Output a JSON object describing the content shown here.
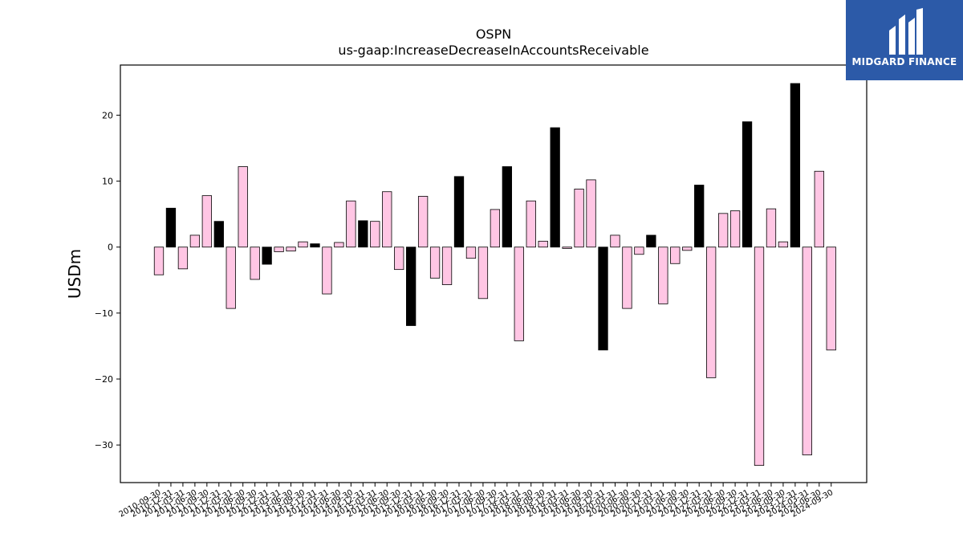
{
  "logo": {
    "text": "MIDGARD FINANCE",
    "bg": "#2c5aa8"
  },
  "chart_data": {
    "type": "bar",
    "title": "OSPN",
    "subtitle": "us-gaap:IncreaseDecreaseInAccountsReceivable",
    "ylabel": "USDm",
    "xlabel": "",
    "ylim": [
      -35.7,
      27.6
    ],
    "yticks": [
      -30,
      -20,
      -10,
      0,
      10,
      20
    ],
    "grid": false,
    "colors": {
      "pink": "#ffc6e4",
      "black": "#000000"
    },
    "categories": [
      "2010-09-30",
      "2010-12-31",
      "2011-03-31",
      "2011-06-30",
      "2011-09-30",
      "2011-12-31",
      "2012-03-31",
      "2012-06-30",
      "2012-09-30",
      "2012-12-31",
      "2013-03-31",
      "2013-06-30",
      "2013-09-30",
      "2013-12-31",
      "2014-03-31",
      "2014-06-30",
      "2014-09-30",
      "2014-12-31",
      "2015-03-31",
      "2015-06-30",
      "2015-09-30",
      "2015-12-31",
      "2016-03-31",
      "2016-06-30",
      "2016-09-30",
      "2016-12-31",
      "2017-03-31",
      "2017-06-30",
      "2017-09-30",
      "2017-12-31",
      "2018-03-31",
      "2018-06-30",
      "2018-09-30",
      "2018-12-31",
      "2019-03-31",
      "2019-06-30",
      "2019-09-30",
      "2019-12-31",
      "2020-03-31",
      "2020-06-30",
      "2020-09-30",
      "2020-12-31",
      "2021-03-31",
      "2021-06-30",
      "2021-09-30",
      "2021-12-31",
      "2022-03-31",
      "2022-06-30",
      "2022-09-30",
      "2022-12-31",
      "2023-03-31",
      "2023-06-30",
      "2023-09-30",
      "2023-12-31",
      "2024-03-31",
      "2024-06-30",
      "2024-09-30"
    ],
    "values": [
      -4.2,
      5.9,
      -3.3,
      1.8,
      7.8,
      3.9,
      -9.3,
      12.2,
      -4.9,
      -2.6,
      -0.7,
      -0.6,
      0.8,
      0.5,
      -7.1,
      0.7,
      7.0,
      4.0,
      3.9,
      8.4,
      -3.4,
      -11.9,
      7.7,
      -4.7,
      -5.7,
      10.7,
      -1.7,
      -7.8,
      5.7,
      12.2,
      -14.2,
      7.0,
      0.9,
      18.1,
      -0.2,
      8.8,
      10.2,
      -15.6,
      1.8,
      -9.3,
      -1.1,
      1.8,
      -8.6,
      -2.5,
      -0.5,
      9.4,
      -19.8,
      5.1,
      5.5,
      19.0,
      -33.1,
      5.8,
      0.8,
      24.8,
      -31.5,
      11.5,
      -15.6
    ],
    "bar_colors": [
      "pink",
      "black",
      "pink",
      "pink",
      "pink",
      "black",
      "pink",
      "pink",
      "pink",
      "black",
      "pink",
      "pink",
      "pink",
      "black",
      "pink",
      "pink",
      "pink",
      "black",
      "pink",
      "pink",
      "pink",
      "black",
      "pink",
      "pink",
      "pink",
      "black",
      "pink",
      "pink",
      "pink",
      "black",
      "pink",
      "pink",
      "pink",
      "black",
      "pink",
      "pink",
      "pink",
      "black",
      "pink",
      "pink",
      "pink",
      "black",
      "pink",
      "pink",
      "pink",
      "black",
      "pink",
      "pink",
      "pink",
      "black",
      "pink",
      "pink",
      "pink",
      "black",
      "pink",
      "pink",
      "pink"
    ]
  }
}
